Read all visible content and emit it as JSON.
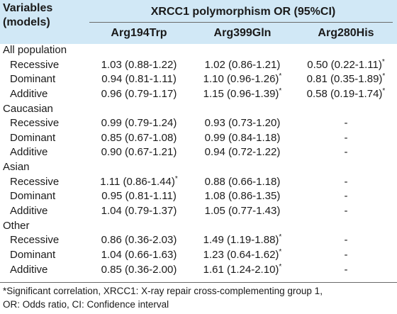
{
  "header": {
    "variables_label_line1": "Variables",
    "variables_label_line2": "(models)",
    "group_title": "XRCC1 polymorphism OR (95%CI)",
    "columns": [
      "Arg194Trp",
      "Arg399Gln",
      "Arg280His"
    ]
  },
  "rows": [
    {
      "type": "group",
      "label": "All population"
    },
    {
      "type": "sub",
      "label": "Recessive",
      "cells": [
        {
          "text": "1.03 (0.88-1.22)",
          "sup": ""
        },
        {
          "text": "1.02 (0.86-1.21)",
          "sup": ""
        },
        {
          "text": "0.50 (0.22-1.11)",
          "sup": "*"
        }
      ]
    },
    {
      "type": "sub",
      "label": "Dominant",
      "cells": [
        {
          "text": "0.94 (0.81-1.11)",
          "sup": ""
        },
        {
          "text": "1.10 (0.96-1.26)",
          "sup": "*"
        },
        {
          "text": "0.81 (0.35-1.89)",
          "sup": "*"
        }
      ]
    },
    {
      "type": "sub",
      "label": "Additive",
      "cells": [
        {
          "text": "0.96 (0.79-1.17)",
          "sup": ""
        },
        {
          "text": "1.15 (0.96-1.39)",
          "sup": "*"
        },
        {
          "text": "0.58 (0.19-1.74)",
          "sup": "*"
        }
      ]
    },
    {
      "type": "group",
      "label": "Caucasian"
    },
    {
      "type": "sub",
      "label": "Recessive",
      "cells": [
        {
          "text": "0.99 (0.79-1.24)",
          "sup": ""
        },
        {
          "text": "0.93 (0.73-1.20)",
          "sup": ""
        },
        {
          "text": "-",
          "sup": ""
        }
      ]
    },
    {
      "type": "sub",
      "label": "Dominant",
      "cells": [
        {
          "text": "0.85 (0.67-1.08)",
          "sup": ""
        },
        {
          "text": "0.99 (0.84-1.18)",
          "sup": ""
        },
        {
          "text": "-",
          "sup": ""
        }
      ]
    },
    {
      "type": "sub",
      "label": "Additive",
      "cells": [
        {
          "text": "0.90 (0.67-1.21)",
          "sup": ""
        },
        {
          "text": "0.94 (0.72-1.22)",
          "sup": ""
        },
        {
          "text": "-",
          "sup": ""
        }
      ]
    },
    {
      "type": "group",
      "label": "Asian"
    },
    {
      "type": "sub",
      "label": "Recessive",
      "cells": [
        {
          "text": "1.11 (0.86-1.44)",
          "sup": "*"
        },
        {
          "text": "0.88 (0.66-1.18)",
          "sup": ""
        },
        {
          "text": "-",
          "sup": ""
        }
      ]
    },
    {
      "type": "sub",
      "label": "Dominant",
      "cells": [
        {
          "text": "0.95 (0.81-1.11)",
          "sup": ""
        },
        {
          "text": "1.08 (0.86-1.35)",
          "sup": ""
        },
        {
          "text": "-",
          "sup": ""
        }
      ]
    },
    {
      "type": "sub",
      "label": "Additive",
      "cells": [
        {
          "text": "1.04 (0.79-1.37)",
          "sup": ""
        },
        {
          "text": "1.05 (0.77-1.43)",
          "sup": ""
        },
        {
          "text": "-",
          "sup": ""
        }
      ]
    },
    {
      "type": "group",
      "label": "Other"
    },
    {
      "type": "sub",
      "label": "Recessive",
      "cells": [
        {
          "text": "0.86 (0.36-2.03)",
          "sup": ""
        },
        {
          "text": "1.49 (1.19-1.88)",
          "sup": "*"
        },
        {
          "text": "-",
          "sup": ""
        }
      ]
    },
    {
      "type": "sub",
      "label": "Dominant",
      "cells": [
        {
          "text": "1.04 (0.66-1.63)",
          "sup": ""
        },
        {
          "text": "1.23 (0.64-1.62)",
          "sup": "*"
        },
        {
          "text": "-",
          "sup": ""
        }
      ]
    },
    {
      "type": "sub",
      "label": "Additive",
      "cells": [
        {
          "text": "0.85 (0.36-2.00)",
          "sup": ""
        },
        {
          "text": "1.61 (1.24-2.10)",
          "sup": "*"
        },
        {
          "text": "-",
          "sup": ""
        }
      ]
    }
  ],
  "footnote": {
    "line1": "*Significant correlation, XRCC1: X-ray repair cross-complementing group 1,",
    "line2": "OR: Odds ratio, CI: Confidence interval"
  },
  "colors": {
    "header_background": "#d1e8f6",
    "text": "#1a1a1a",
    "rule": "#6a6a6a"
  }
}
